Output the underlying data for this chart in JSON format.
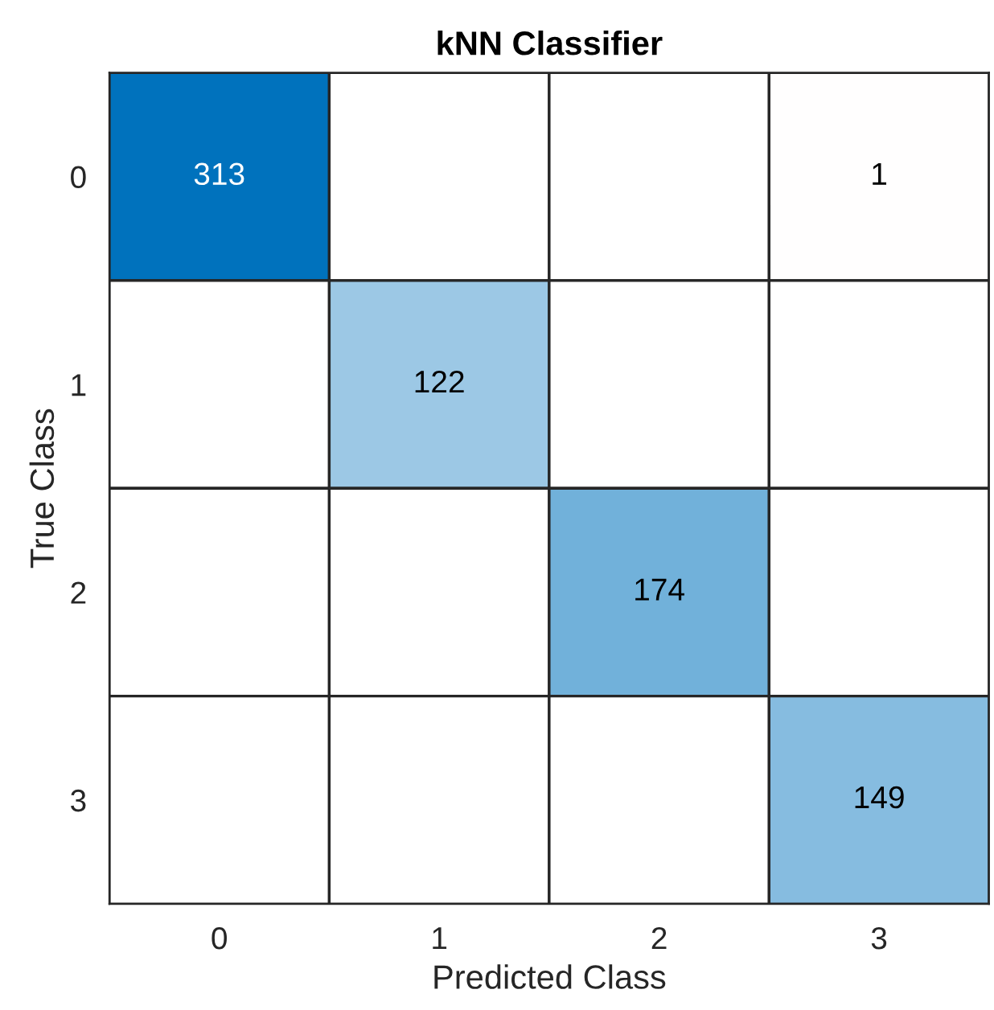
{
  "chart_data": {
    "type": "heatmap",
    "title": "kNN Classifier",
    "xlabel": "Predicted Class",
    "ylabel": "True Class",
    "categories": [
      "0",
      "1",
      "2",
      "3"
    ],
    "y_categories": [
      "0",
      "1",
      "2",
      "3"
    ],
    "cells": [
      [
        313,
        null,
        null,
        1
      ],
      [
        null,
        122,
        null,
        null
      ],
      [
        null,
        null,
        174,
        null
      ],
      [
        null,
        null,
        null,
        149
      ]
    ],
    "colors": [
      "#0072bd",
      "#d95319"
    ],
    "data_labels": true
  }
}
